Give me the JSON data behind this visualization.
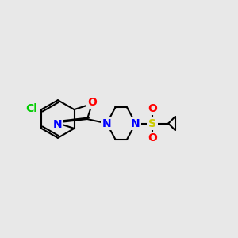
{
  "bg_color": "#e8e8e8",
  "bond_color": "#000000",
  "bond_width": 1.5,
  "atom_colors": {
    "Cl": "#00cc00",
    "O": "#ff0000",
    "N": "#0000ff",
    "S": "#cccc00",
    "C": "#000000"
  },
  "font_size_atoms": 10,
  "fig_size": [
    3.0,
    3.0
  ],
  "dpi": 100
}
